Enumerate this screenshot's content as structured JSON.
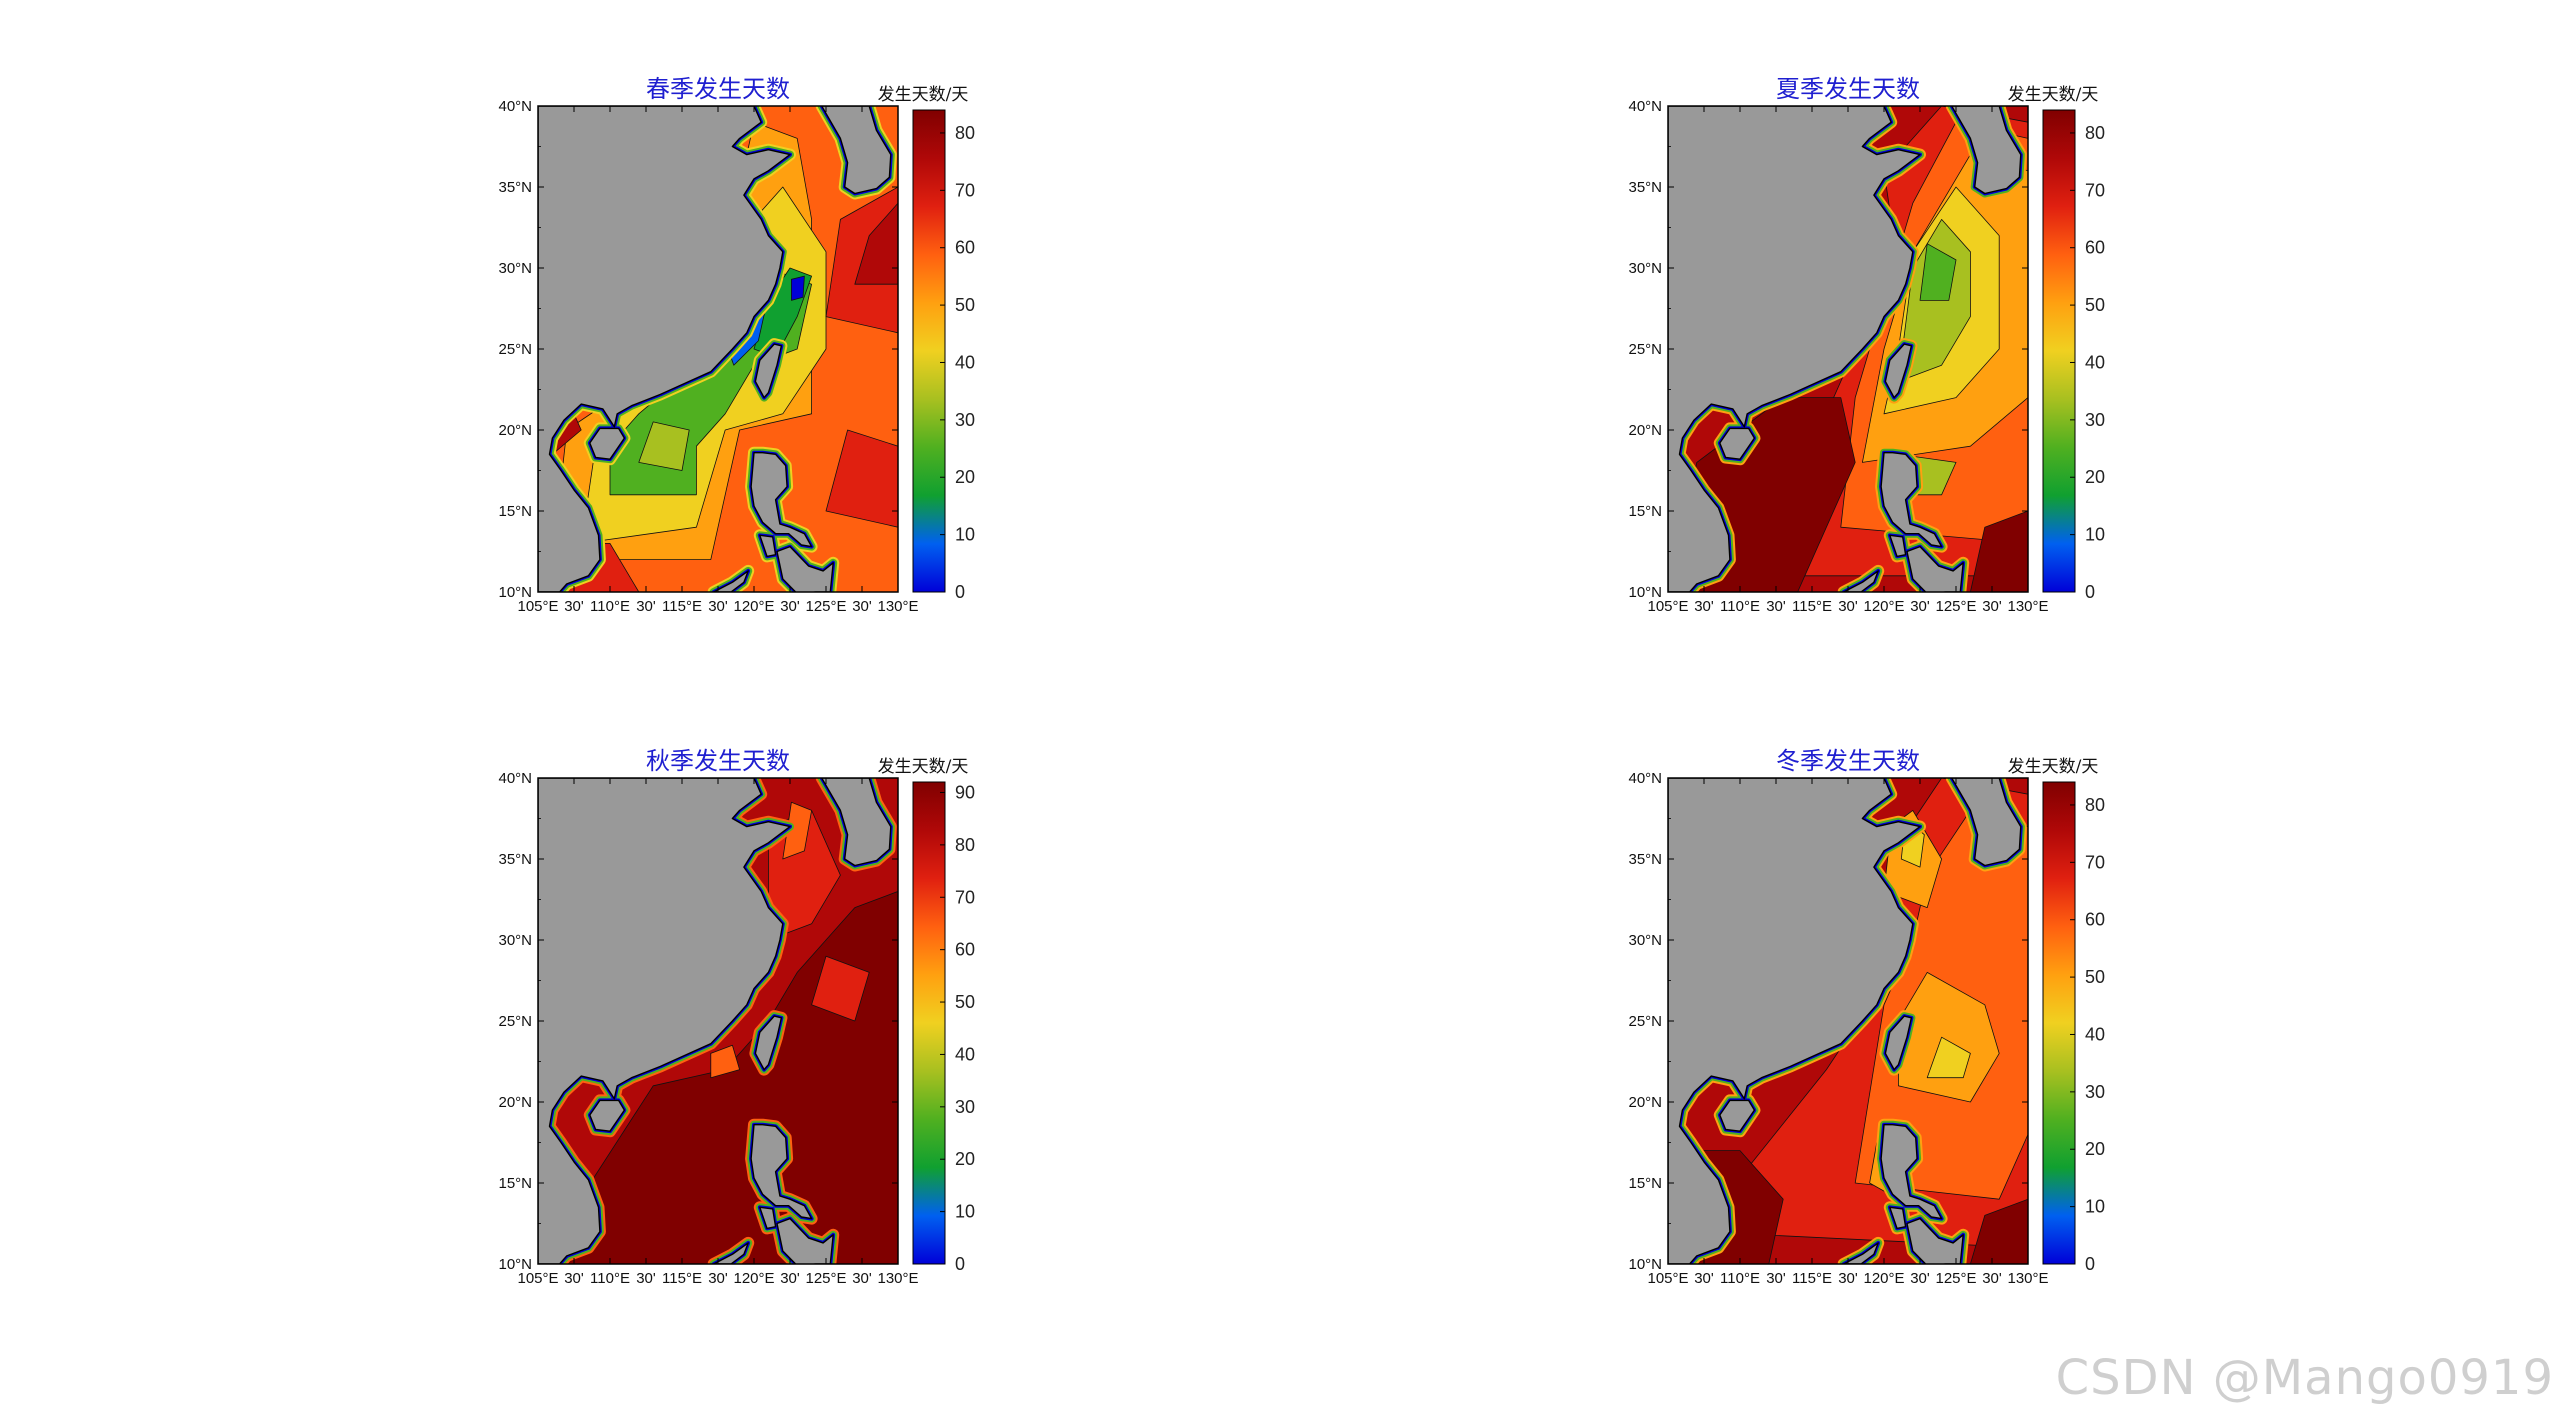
{
  "watermark": "CSDN @Mango0919",
  "colorbar_title": "发生天数/天",
  "x_ticks": [
    "105°E",
    "30'",
    "110°E",
    "30'",
    "115°E",
    "30'",
    "120°E",
    "30'",
    "125°E",
    "30'",
    "130°E"
  ],
  "y_ticks": [
    "40°N",
    "35°N",
    "30°N",
    "25°N",
    "20°N",
    "15°N",
    "10°N"
  ],
  "colormap": [
    "#0000d8",
    "#0060f0",
    "#10a030",
    "#50b020",
    "#a8c020",
    "#f0d020",
    "#ffa010",
    "#ff6010",
    "#e02010",
    "#b00808",
    "#800000"
  ],
  "land_color": "#999999",
  "maps": [
    {
      "id": "spring",
      "title": "春季发生天数",
      "cb_ticks": [
        "80",
        "70",
        "60",
        "50",
        "40",
        "30",
        "20",
        "10",
        "0"
      ],
      "cb_max": 84,
      "scheme": "spring"
    },
    {
      "id": "summer",
      "title": "夏季发生天数",
      "cb_ticks": [
        "80",
        "70",
        "60",
        "50",
        "40",
        "30",
        "20",
        "10",
        "0"
      ],
      "cb_max": 84,
      "scheme": "summer"
    },
    {
      "id": "autumn",
      "title": "秋季发生天数",
      "cb_ticks": [
        "90",
        "80",
        "70",
        "60",
        "50",
        "40",
        "30",
        "20",
        "10",
        "0"
      ],
      "cb_max": 92,
      "scheme": "autumn"
    },
    {
      "id": "winter",
      "title": "冬季发生天数",
      "cb_ticks": [
        "80",
        "70",
        "60",
        "50",
        "40",
        "30",
        "20",
        "10",
        "0"
      ],
      "cb_max": 84,
      "scheme": "winter"
    }
  ]
}
